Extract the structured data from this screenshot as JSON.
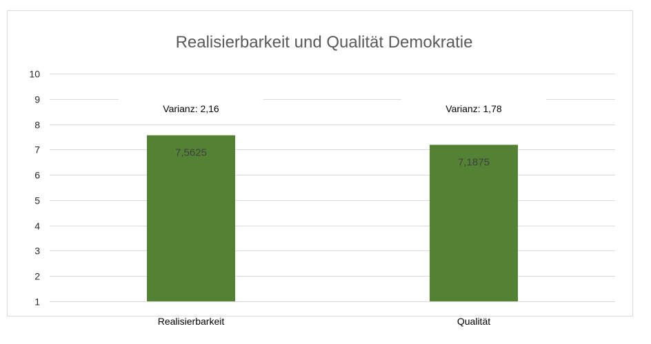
{
  "chart_data": {
    "type": "bar",
    "title": "Realisierbarkeit und Qualität Demokratie",
    "categories": [
      "Realisierbarkeit",
      "Qualität"
    ],
    "values": [
      7.5625,
      7.1875
    ],
    "data_labels": [
      "7,5625",
      "7,1875"
    ],
    "annotations": [
      "Varianz: 2,16",
      "Varianz: 1,78"
    ],
    "y_ticks": [
      "1",
      "2",
      "3",
      "4",
      "5",
      "6",
      "7",
      "8",
      "9",
      "10"
    ],
    "ylim": [
      1,
      10
    ],
    "grid": true,
    "legend": "none",
    "bar_color": "#548235",
    "grid_color": "#d9d9d9"
  }
}
